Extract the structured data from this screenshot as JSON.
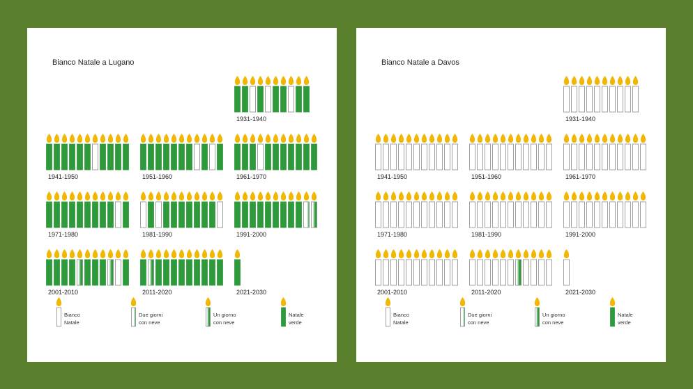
{
  "colors": {
    "background": "#5a7f2d",
    "green": "#2f9a3c",
    "flame": "#f2b705",
    "outline": "#8a8a8a"
  },
  "chart_data": [
    {
      "type": "pictogram",
      "title": "Bianco Natale a Lugano",
      "decades": [
        {
          "label": "1931-1940",
          "values": [
            3,
            3,
            0,
            3,
            0,
            3,
            3,
            0,
            3,
            3
          ]
        },
        {
          "label": "1941-1950",
          "values": [
            3,
            3,
            3,
            3,
            3,
            3,
            0,
            3,
            3,
            3,
            3
          ]
        },
        {
          "label": "1951-1960",
          "values": [
            3,
            3,
            3,
            3,
            3,
            3,
            3,
            0,
            3,
            0,
            3
          ]
        },
        {
          "label": "1961-1970",
          "values": [
            3,
            3,
            3,
            0,
            3,
            3,
            3,
            3,
            3,
            3,
            3
          ]
        },
        {
          "label": "1971-1980",
          "values": [
            3,
            3,
            3,
            3,
            3,
            3,
            3,
            3,
            3,
            0,
            3
          ]
        },
        {
          "label": "1981-1990",
          "values": [
            0,
            3,
            0,
            3,
            3,
            3,
            3,
            3,
            3,
            3,
            0
          ]
        },
        {
          "label": "1991-2000",
          "values": [
            3,
            3,
            3,
            3,
            3,
            3,
            3,
            3,
            3,
            1,
            2
          ]
        },
        {
          "label": "2001-2010",
          "values": [
            3,
            3,
            3,
            3,
            2,
            3,
            3,
            3,
            2,
            0,
            3
          ]
        },
        {
          "label": "2011-2020",
          "values": [
            3,
            2,
            3,
            3,
            3,
            3,
            3,
            3,
            3,
            3,
            3
          ]
        },
        {
          "label": "2021-2030",
          "values": [
            3
          ]
        }
      ],
      "legend": [
        {
          "line1": "Bianco",
          "line2": "Natale",
          "level": 0
        },
        {
          "line1": "Due giorni",
          "line2": "con neve",
          "level": 1
        },
        {
          "line1": "Un giorno",
          "line2": "con neve",
          "level": 2
        },
        {
          "line1": "Natale",
          "line2": "verde",
          "level": 3
        }
      ]
    },
    {
      "type": "pictogram",
      "title": "Bianco Natale a Davos",
      "decades": [
        {
          "label": "1931-1940",
          "values": [
            0,
            0,
            0,
            0,
            0,
            0,
            0,
            0,
            0,
            0
          ]
        },
        {
          "label": "1941-1950",
          "values": [
            0,
            0,
            0,
            0,
            0,
            0,
            0,
            0,
            0,
            0,
            0
          ]
        },
        {
          "label": "1951-1960",
          "values": [
            0,
            0,
            0,
            0,
            0,
            0,
            0,
            0,
            0,
            0,
            0
          ]
        },
        {
          "label": "1961-1970",
          "values": [
            0,
            0,
            0,
            0,
            0,
            0,
            0,
            0,
            0,
            0,
            0
          ]
        },
        {
          "label": "1971-1980",
          "values": [
            0,
            0,
            0,
            0,
            0,
            0,
            0,
            0,
            0,
            0,
            0
          ]
        },
        {
          "label": "1981-1990",
          "values": [
            0,
            0,
            0,
            0,
            0,
            0,
            0,
            0,
            0,
            0,
            0
          ]
        },
        {
          "label": "1991-2000",
          "values": [
            0,
            0,
            0,
            0,
            0,
            0,
            0,
            0,
            0,
            0,
            0
          ]
        },
        {
          "label": "2001-2010",
          "values": [
            0,
            0,
            0,
            0,
            0,
            0,
            0,
            0,
            0,
            0,
            0
          ]
        },
        {
          "label": "2011-2020",
          "values": [
            0,
            0,
            0,
            0,
            0,
            0,
            2,
            0,
            0,
            0,
            0
          ]
        },
        {
          "label": "2021-2030",
          "values": [
            0
          ]
        }
      ],
      "legend": [
        {
          "line1": "Bianco",
          "line2": "Natale",
          "level": 0
        },
        {
          "line1": "Due giorni",
          "line2": "con neve",
          "level": 1
        },
        {
          "line1": "Un giorno",
          "line2": "con neve",
          "level": 2
        },
        {
          "line1": "Natale",
          "line2": "verde",
          "level": 3
        }
      ]
    }
  ]
}
